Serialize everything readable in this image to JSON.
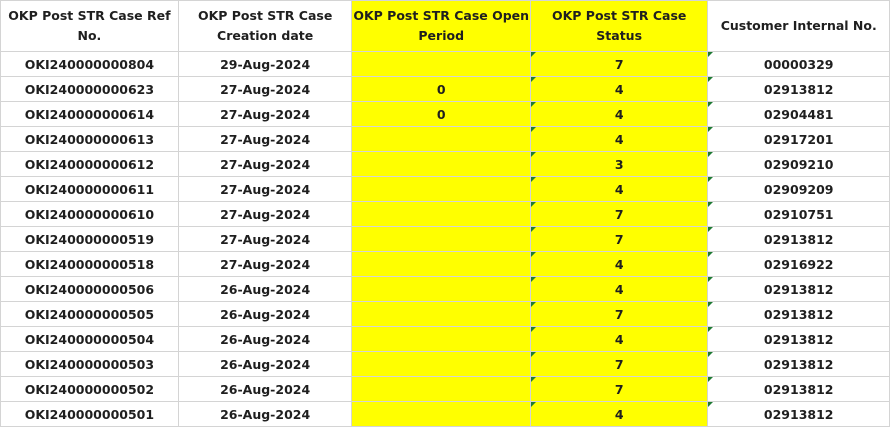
{
  "headers": {
    "ref": "OKP Post STR Case Ref No.",
    "date": "OKP Post STR Case Creation date",
    "open": "OKP Post STR Case Open Period",
    "status": "OKP Post STR Case Status",
    "cust": "Customer Internal No."
  },
  "rows": [
    {
      "ref": "OKI240000000804",
      "date": "29-Aug-2024",
      "open": "",
      "status": "7",
      "cust": "00000329"
    },
    {
      "ref": "OKI240000000623",
      "date": "27-Aug-2024",
      "open": "0",
      "status": "4",
      "cust": "02913812"
    },
    {
      "ref": "OKI240000000614",
      "date": "27-Aug-2024",
      "open": "0",
      "status": "4",
      "cust": "02904481"
    },
    {
      "ref": "OKI240000000613",
      "date": "27-Aug-2024",
      "open": "",
      "status": "4",
      "cust": "02917201"
    },
    {
      "ref": "OKI240000000612",
      "date": "27-Aug-2024",
      "open": "",
      "status": "3",
      "cust": "02909210"
    },
    {
      "ref": "OKI240000000611",
      "date": "27-Aug-2024",
      "open": "",
      "status": "4",
      "cust": "02909209"
    },
    {
      "ref": "OKI240000000610",
      "date": "27-Aug-2024",
      "open": "",
      "status": "7",
      "cust": "02910751"
    },
    {
      "ref": "OKI240000000519",
      "date": "27-Aug-2024",
      "open": "",
      "status": "7",
      "cust": "02913812"
    },
    {
      "ref": "OKI240000000518",
      "date": "27-Aug-2024",
      "open": "",
      "status": "4",
      "cust": "02916922"
    },
    {
      "ref": "OKI240000000506",
      "date": "26-Aug-2024",
      "open": "",
      "status": "4",
      "cust": "02913812"
    },
    {
      "ref": "OKI240000000505",
      "date": "26-Aug-2024",
      "open": "",
      "status": "7",
      "cust": "02913812"
    },
    {
      "ref": "OKI240000000504",
      "date": "26-Aug-2024",
      "open": "",
      "status": "4",
      "cust": "02913812"
    },
    {
      "ref": "OKI240000000503",
      "date": "26-Aug-2024",
      "open": "",
      "status": "7",
      "cust": "02913812"
    },
    {
      "ref": "OKI240000000502",
      "date": "26-Aug-2024",
      "open": "",
      "status": "7",
      "cust": "02913812"
    },
    {
      "ref": "OKI240000000501",
      "date": "26-Aug-2024",
      "open": "",
      "status": "4",
      "cust": "02913812"
    }
  ],
  "colors": {
    "highlight": "#ffff00",
    "error_triangle": "#1e7b34",
    "gridline": "#d4d4d4"
  }
}
